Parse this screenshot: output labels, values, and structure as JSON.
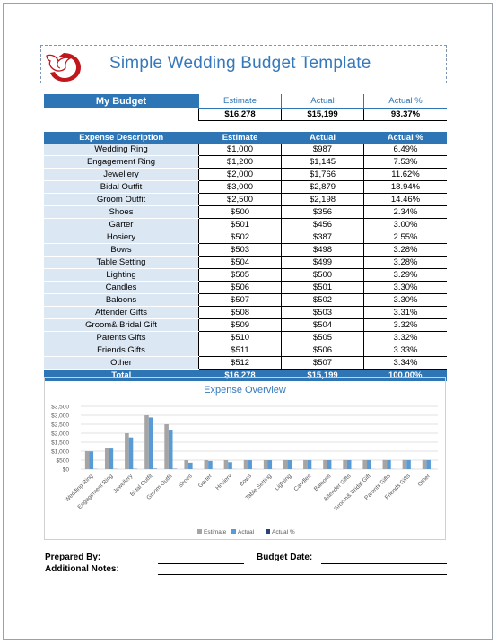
{
  "title": "Simple Wedding Budget Template",
  "summary": {
    "label": "My Budget",
    "headers": [
      "Estimate",
      "Actual",
      "Actual %"
    ],
    "values": [
      "$16,278",
      "$15,199",
      "93.37%"
    ]
  },
  "table": {
    "headers": [
      "Expense Description",
      "Estimate",
      "Actual",
      "Actual %"
    ],
    "rows": [
      [
        "Wedding Ring",
        "$1,000",
        "$987",
        "6.49%"
      ],
      [
        "Engagement Ring",
        "$1,200",
        "$1,145",
        "7.53%"
      ],
      [
        "Jewellery",
        "$2,000",
        "$1,766",
        "11.62%"
      ],
      [
        "Bidal Outfit",
        "$3,000",
        "$2,879",
        "18.94%"
      ],
      [
        "Groom Outfit",
        "$2,500",
        "$2,198",
        "14.46%"
      ],
      [
        "Shoes",
        "$500",
        "$356",
        "2.34%"
      ],
      [
        "Garter",
        "$501",
        "$456",
        "3.00%"
      ],
      [
        "Hosiery",
        "$502",
        "$387",
        "2.55%"
      ],
      [
        "Bows",
        "$503",
        "$498",
        "3.28%"
      ],
      [
        "Table Setting",
        "$504",
        "$499",
        "3.28%"
      ],
      [
        "Lighting",
        "$505",
        "$500",
        "3.29%"
      ],
      [
        "Candles",
        "$506",
        "$501",
        "3.30%"
      ],
      [
        "Baloons",
        "$507",
        "$502",
        "3.30%"
      ],
      [
        "Attender Gifts",
        "$508",
        "$503",
        "3.31%"
      ],
      [
        "Groom& Bridal Gift",
        "$509",
        "$504",
        "3.32%"
      ],
      [
        "Parents Gifts",
        "$510",
        "$505",
        "3.32%"
      ],
      [
        "Friends Gifts",
        "$511",
        "$506",
        "3.33%"
      ],
      [
        "Other",
        "$512",
        "$507",
        "3.34%"
      ]
    ],
    "total": [
      "Total",
      "$16,278",
      "$15,199",
      "100.00%"
    ]
  },
  "chart_data": {
    "type": "bar",
    "title": "Expense Overview",
    "categories": [
      "Wedding Ring",
      "Engagement Ring",
      "Jewellery",
      "Bidal Outfit",
      "Groom Outfit",
      "Shoes",
      "Garter",
      "Hosiery",
      "Bows",
      "Table Setting",
      "Lighting",
      "Candles",
      "Baloons",
      "Attender Gifts",
      "Groom& Bridal Gift",
      "Parents Gifts",
      "Friends Gifts",
      "Other"
    ],
    "series": [
      {
        "name": "Estimate",
        "color": "#a5a5a5",
        "values": [
          1000,
          1200,
          2000,
          3000,
          2500,
          500,
          501,
          502,
          503,
          504,
          505,
          506,
          507,
          508,
          509,
          510,
          511,
          512
        ]
      },
      {
        "name": "Actual",
        "color": "#5b9bd5",
        "values": [
          987,
          1145,
          1766,
          2879,
          2198,
          356,
          456,
          387,
          498,
          499,
          500,
          501,
          502,
          503,
          504,
          505,
          506,
          507
        ]
      },
      {
        "name": "Actual %",
        "color": "#264478",
        "values": [
          0.0649,
          0.0753,
          0.1162,
          0.1894,
          0.1446,
          0.0234,
          0.03,
          0.0255,
          0.0328,
          0.0328,
          0.0329,
          0.033,
          0.033,
          0.0331,
          0.0332,
          0.0332,
          0.0333,
          0.0334
        ]
      }
    ],
    "yticks": [
      "$0",
      "$500",
      "$1,000",
      "$1,500",
      "$2,000",
      "$2,500",
      "$3,000",
      "$3,500"
    ],
    "ylim": [
      0,
      3500
    ],
    "grid": true,
    "legend": "bottom"
  },
  "footer": {
    "prepared_by": "Prepared By:",
    "budget_date": "Budget Date:",
    "notes": "Additional Notes:"
  }
}
